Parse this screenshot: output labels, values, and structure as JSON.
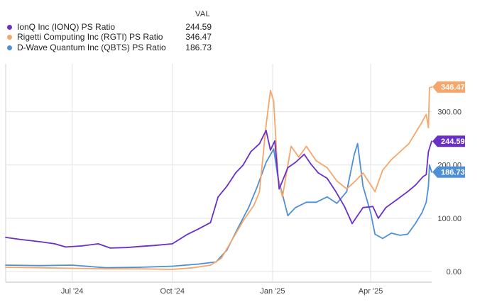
{
  "legend": {
    "header": "VAL",
    "items": [
      {
        "label": "IonQ Inc (IONQ) PS Ratio",
        "value": "244.59",
        "color": "#6a2fc7"
      },
      {
        "label": "Rigetti Computing Inc (RGTI) PS Ratio",
        "value": "346.47",
        "color": "#f5a66b"
      },
      {
        "label": "D-Wave Quantum Inc (QBTS) PS Ratio",
        "value": "186.73",
        "color": "#4f8fd6"
      }
    ]
  },
  "chart_data": {
    "type": "line",
    "xlabel": "",
    "ylabel": "",
    "x_range": [
      "2024-05-01",
      "2025-05-27"
    ],
    "ylim": [
      -20,
      390
    ],
    "y_ticks": [
      "0.00",
      "100.00",
      "200.00",
      "300.00"
    ],
    "x_ticks": [
      {
        "label": "Jul '24",
        "date": "2024-07-01"
      },
      {
        "label": "Oct '24",
        "date": "2024-10-01"
      },
      {
        "label": "Jan '25",
        "date": "2025-01-01"
      },
      {
        "label": "Apr '25",
        "date": "2025-04-01"
      }
    ],
    "grid": true,
    "series": [
      {
        "name": "IonQ Inc (IONQ) PS Ratio",
        "color": "#6a2fc7",
        "end_label": "244.59",
        "points": [
          [
            "2024-05-01",
            64
          ],
          [
            "2024-05-15",
            60
          ],
          [
            "2024-06-01",
            56
          ],
          [
            "2024-06-15",
            52
          ],
          [
            "2024-06-25",
            46
          ],
          [
            "2024-07-10",
            48
          ],
          [
            "2024-07-25",
            52
          ],
          [
            "2024-08-05",
            44
          ],
          [
            "2024-08-20",
            45
          ],
          [
            "2024-09-01",
            47
          ],
          [
            "2024-09-15",
            49
          ],
          [
            "2024-10-01",
            52
          ],
          [
            "2024-10-15",
            70
          ],
          [
            "2024-10-25",
            80
          ],
          [
            "2024-11-05",
            92
          ],
          [
            "2024-11-12",
            140
          ],
          [
            "2024-11-20",
            160
          ],
          [
            "2024-11-28",
            185
          ],
          [
            "2024-12-05",
            200
          ],
          [
            "2024-12-12",
            225
          ],
          [
            "2024-12-20",
            240
          ],
          [
            "2024-12-26",
            265
          ],
          [
            "2024-12-30",
            228
          ],
          [
            "2025-01-03",
            245
          ],
          [
            "2025-01-07",
            155
          ],
          [
            "2025-01-10",
            170
          ],
          [
            "2025-01-15",
            195
          ],
          [
            "2025-01-22",
            205
          ],
          [
            "2025-01-30",
            220
          ],
          [
            "2025-02-05",
            202
          ],
          [
            "2025-02-12",
            185
          ],
          [
            "2025-02-20",
            175
          ],
          [
            "2025-02-28",
            150
          ],
          [
            "2025-03-08",
            122
          ],
          [
            "2025-03-15",
            90
          ],
          [
            "2025-03-25",
            120
          ],
          [
            "2025-04-03",
            122
          ],
          [
            "2025-04-08",
            100
          ],
          [
            "2025-04-15",
            120
          ],
          [
            "2025-04-25",
            135
          ],
          [
            "2025-05-05",
            150
          ],
          [
            "2025-05-12",
            162
          ],
          [
            "2025-05-19",
            178
          ],
          [
            "2025-05-22",
            182
          ],
          [
            "2025-05-24",
            225
          ],
          [
            "2025-05-27",
            244.59
          ]
        ]
      },
      {
        "name": "Rigetti Computing Inc (RGTI) PS Ratio",
        "color": "#f5a66b",
        "end_label": "346.47",
        "points": [
          [
            "2024-05-01",
            8
          ],
          [
            "2024-06-01",
            7
          ],
          [
            "2024-07-01",
            6
          ],
          [
            "2024-08-01",
            5
          ],
          [
            "2024-09-01",
            5
          ],
          [
            "2024-10-01",
            4
          ],
          [
            "2024-10-20",
            7
          ],
          [
            "2024-11-05",
            12
          ],
          [
            "2024-11-15",
            25
          ],
          [
            "2024-11-25",
            60
          ],
          [
            "2024-12-05",
            95
          ],
          [
            "2024-12-15",
            125
          ],
          [
            "2024-12-20",
            150
          ],
          [
            "2024-12-26",
            275
          ],
          [
            "2024-12-30",
            340
          ],
          [
            "2025-01-02",
            320
          ],
          [
            "2025-01-06",
            175
          ],
          [
            "2025-01-10",
            140
          ],
          [
            "2025-01-18",
            235
          ],
          [
            "2025-01-25",
            215
          ],
          [
            "2025-02-01",
            235
          ],
          [
            "2025-02-10",
            208
          ],
          [
            "2025-02-20",
            195
          ],
          [
            "2025-03-01",
            170
          ],
          [
            "2025-03-10",
            155
          ],
          [
            "2025-03-18",
            170
          ],
          [
            "2025-03-25",
            185
          ],
          [
            "2025-04-05",
            150
          ],
          [
            "2025-04-12",
            190
          ],
          [
            "2025-04-20",
            210
          ],
          [
            "2025-04-28",
            225
          ],
          [
            "2025-05-06",
            240
          ],
          [
            "2025-05-12",
            260
          ],
          [
            "2025-05-18",
            280
          ],
          [
            "2025-05-22",
            295
          ],
          [
            "2025-05-24",
            270
          ],
          [
            "2025-05-25",
            345
          ],
          [
            "2025-05-27",
            346.47
          ]
        ]
      },
      {
        "name": "D-Wave Quantum Inc (QBTS) PS Ratio",
        "color": "#4f8fd6",
        "end_label": "186.73",
        "points": [
          [
            "2024-05-01",
            12
          ],
          [
            "2024-06-01",
            11
          ],
          [
            "2024-07-01",
            12
          ],
          [
            "2024-08-01",
            7
          ],
          [
            "2024-09-01",
            8
          ],
          [
            "2024-10-01",
            10
          ],
          [
            "2024-10-25",
            14
          ],
          [
            "2024-11-10",
            18
          ],
          [
            "2024-11-20",
            40
          ],
          [
            "2024-12-01",
            85
          ],
          [
            "2024-12-10",
            120
          ],
          [
            "2024-12-18",
            160
          ],
          [
            "2024-12-26",
            205
          ],
          [
            "2025-01-02",
            230
          ],
          [
            "2025-01-06",
            175
          ],
          [
            "2025-01-10",
            145
          ],
          [
            "2025-01-15",
            105
          ],
          [
            "2025-01-22",
            120
          ],
          [
            "2025-02-01",
            130
          ],
          [
            "2025-02-10",
            130
          ],
          [
            "2025-02-20",
            140
          ],
          [
            "2025-03-01",
            128
          ],
          [
            "2025-03-10",
            150
          ],
          [
            "2025-03-17",
            220
          ],
          [
            "2025-03-20",
            240
          ],
          [
            "2025-03-25",
            160
          ],
          [
            "2025-04-01",
            110
          ],
          [
            "2025-04-05",
            70
          ],
          [
            "2025-04-12",
            62
          ],
          [
            "2025-04-20",
            72
          ],
          [
            "2025-04-28",
            68
          ],
          [
            "2025-05-05",
            70
          ],
          [
            "2025-05-12",
            90
          ],
          [
            "2025-05-18",
            110
          ],
          [
            "2025-05-22",
            130
          ],
          [
            "2025-05-24",
            160
          ],
          [
            "2025-05-25",
            200
          ],
          [
            "2025-05-27",
            186.73
          ]
        ]
      }
    ]
  }
}
